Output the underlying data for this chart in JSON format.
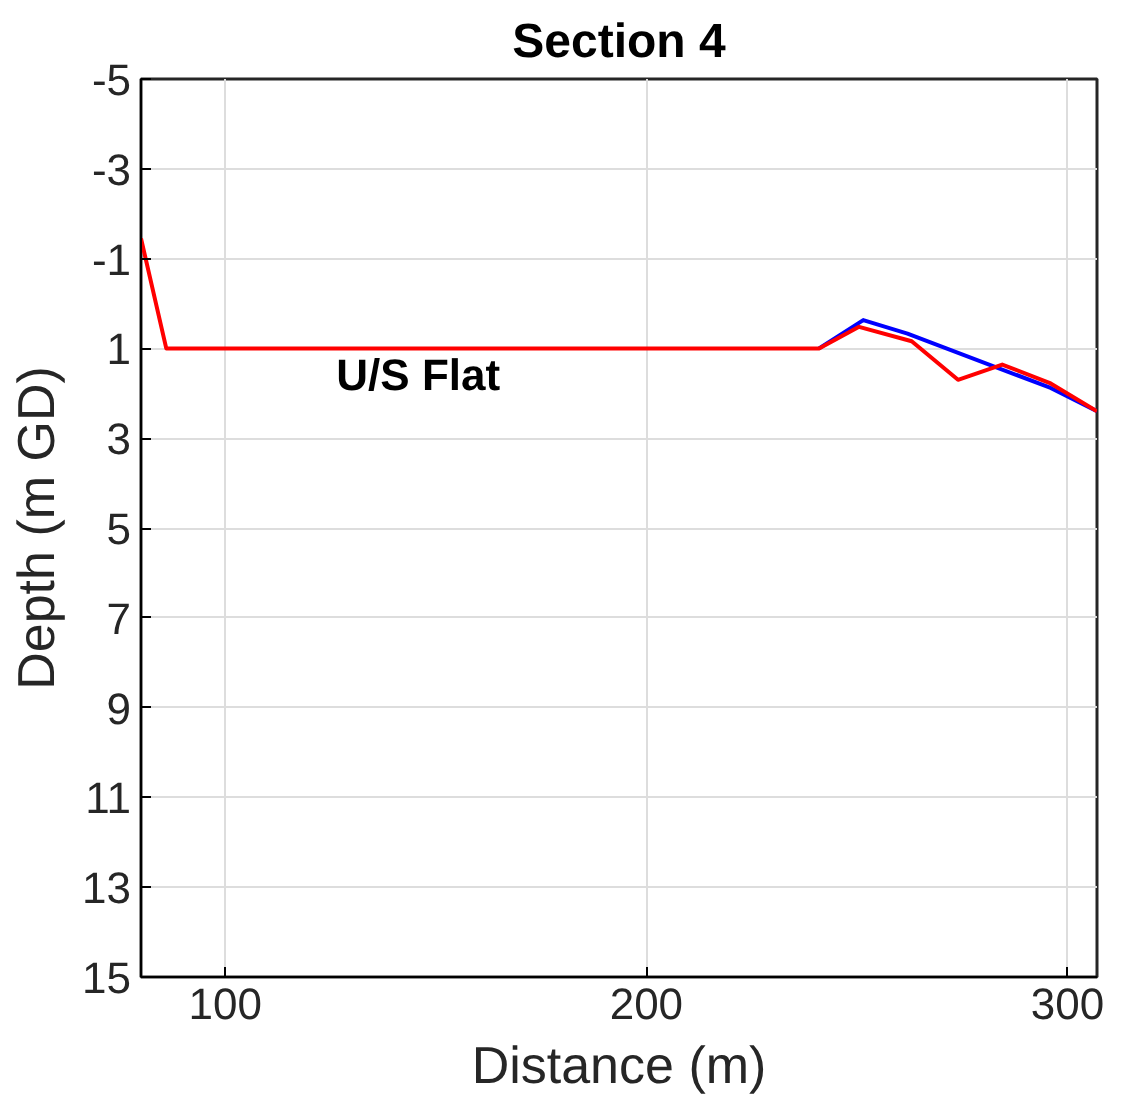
{
  "chart_data": {
    "type": "line",
    "title": "Section 4",
    "xlabel": "Distance (m)",
    "ylabel": "Depth (m GD)",
    "xlim": [
      80,
      307
    ],
    "xticks": [
      100,
      200,
      300
    ],
    "ylim": [
      15,
      -5
    ],
    "yticks": [
      -5,
      -3,
      -1,
      1,
      3,
      5,
      7,
      9,
      11,
      13,
      15
    ],
    "grid": true,
    "line_style": "solid",
    "marker": "none",
    "annotations": [
      "U/S Flat"
    ],
    "series": [
      {
        "color": "#0000ff",
        "x": [
          241,
          251.5,
          262,
          296,
          307
        ],
        "values": [
          1,
          0.37,
          0.67,
          1.88,
          2.4
        ]
      },
      {
        "color": "#ff0000",
        "x": [
          80,
          86,
          120,
          200,
          241,
          250.5,
          263,
          274,
          284.5,
          296,
          307
        ],
        "values": [
          -1.45,
          1,
          1,
          1,
          1,
          0.52,
          0.84,
          1.7,
          1.36,
          1.78,
          2.4
        ]
      }
    ]
  }
}
